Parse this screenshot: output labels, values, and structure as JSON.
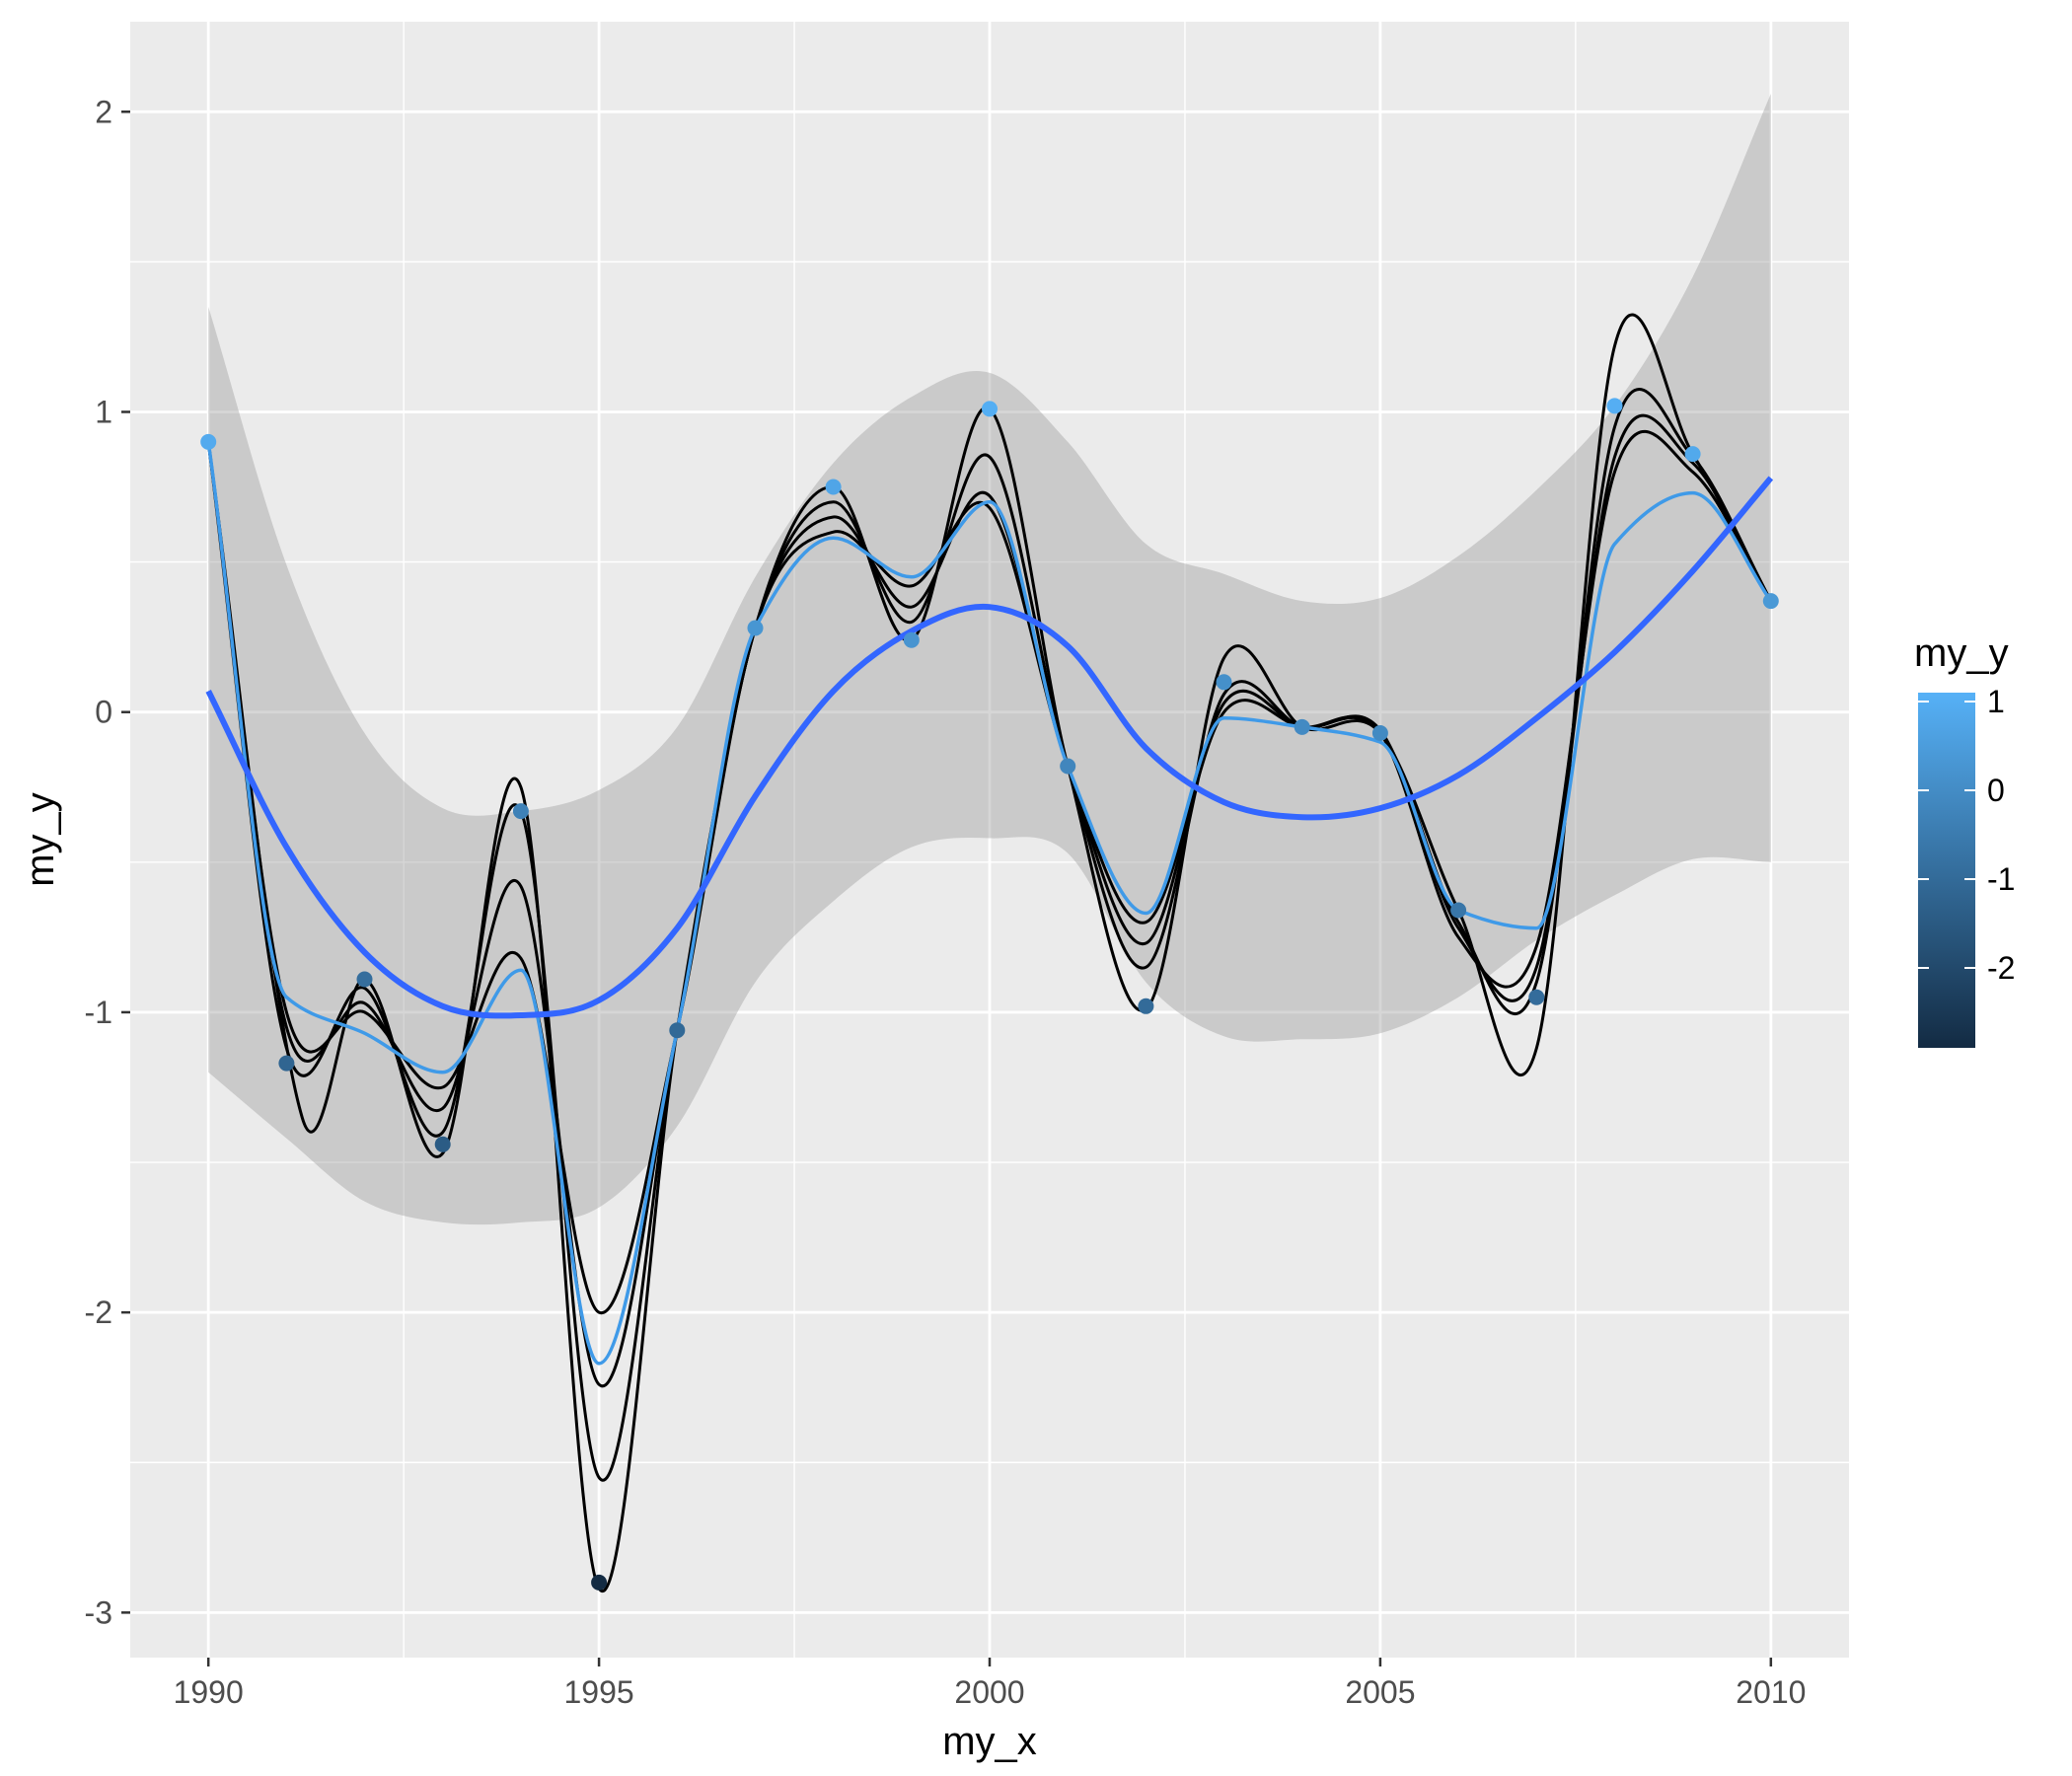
{
  "chart_data": {
    "type": "line",
    "xlabel": "my_x",
    "ylabel": "my_y",
    "xlim": [
      1989,
      2011
    ],
    "ylim": [
      -3.15,
      2.3
    ],
    "x_ticks": [
      1990,
      1995,
      2000,
      2005,
      2010
    ],
    "x_tick_labels": [
      "1990",
      "1995",
      "2000",
      "2005",
      "2010"
    ],
    "y_ticks": [
      -3,
      -2,
      -1,
      0,
      1,
      2
    ],
    "y_tick_labels": [
      "-3",
      "-2",
      "-1",
      "0",
      "1",
      "2"
    ],
    "grid": true,
    "legend": {
      "title": "my_y",
      "position": "right",
      "type": "colorbar",
      "range": [
        -2.9,
        1.1
      ],
      "breaks": [
        1,
        0,
        -1,
        -2
      ],
      "labels": [
        "1",
        "0",
        "-1",
        "-2"
      ],
      "low_color": "#132B43",
      "high_color": "#56B1F7"
    },
    "points": {
      "x": [
        1990,
        1991,
        1992,
        1993,
        1994,
        1995,
        1996,
        1997,
        1998,
        1999,
        2000,
        2001,
        2002,
        2003,
        2004,
        2005,
        2006,
        2007,
        2008,
        2009,
        2010
      ],
      "y": [
        0.9,
        -1.17,
        -0.89,
        -1.44,
        -0.33,
        -2.9,
        -1.06,
        0.28,
        0.75,
        0.24,
        1.01,
        -0.18,
        -0.98,
        0.1,
        -0.05,
        -0.07,
        -0.66,
        -0.95,
        1.02,
        0.86,
        0.37
      ]
    },
    "smooth": {
      "method": "loess",
      "color": "#3366FF",
      "x": [
        1990,
        1991,
        1992,
        1993,
        1994,
        1995,
        1996,
        1997,
        1998,
        1999,
        2000,
        2001,
        2002,
        2003,
        2004,
        2005,
        2006,
        2007,
        2008,
        2009,
        2010
      ],
      "y": [
        0.07,
        -0.45,
        -0.8,
        -0.98,
        -1.01,
        -0.96,
        -0.72,
        -0.28,
        0.07,
        0.27,
        0.35,
        0.22,
        -0.12,
        -0.3,
        -0.35,
        -0.32,
        -0.21,
        -0.02,
        0.2,
        0.47,
        0.78
      ],
      "ci_lower": [
        -1.2,
        -1.42,
        -1.63,
        -1.7,
        -1.7,
        -1.65,
        -1.38,
        -0.9,
        -0.63,
        -0.45,
        -0.42,
        -0.47,
        -0.9,
        -1.08,
        -1.09,
        -1.07,
        -0.95,
        -0.76,
        -0.61,
        -0.49,
        -0.5
      ],
      "ci_upper": [
        1.35,
        0.49,
        -0.07,
        -0.32,
        -0.33,
        -0.26,
        -0.05,
        0.45,
        0.83,
        1.05,
        1.13,
        0.9,
        0.56,
        0.46,
        0.37,
        0.38,
        0.52,
        0.74,
        1.02,
        1.45,
        2.06
      ]
    },
    "spline_fit": {
      "color": "#3F9AE8",
      "x": [
        1990,
        1991,
        1992,
        1993,
        1994,
        1995,
        1996,
        1997,
        1998,
        1999,
        2000,
        2001,
        2002,
        2003,
        2004,
        2005,
        2006,
        2007,
        2008,
        2009,
        2010
      ],
      "y": [
        0.9,
        -0.95,
        -1.07,
        -1.2,
        -0.86,
        -2.17,
        -1.06,
        0.28,
        0.58,
        0.45,
        0.7,
        -0.18,
        -0.67,
        -0.02,
        -0.05,
        -0.1,
        -0.66,
        -0.72,
        0.56,
        0.73,
        0.37
      ]
    },
    "interpolations": [
      {
        "x": [
          1990,
          1991.2,
          1992,
          1993,
          1994,
          1995,
          1996,
          1997,
          1998,
          1999,
          2000,
          2001,
          2002,
          2003,
          2004,
          2005,
          2006,
          2007,
          2008,
          2009,
          2010
        ],
        "y": [
          0.9,
          -1.35,
          -0.89,
          -1.47,
          -0.25,
          -2.92,
          -1.06,
          0.28,
          0.75,
          0.24,
          1.01,
          -0.18,
          -0.99,
          0.18,
          -0.05,
          -0.07,
          -0.66,
          -1.12,
          1.22,
          0.86,
          0.37
        ]
      },
      {
        "x": [
          1990,
          1991,
          1992,
          1993,
          1994,
          1995,
          1996,
          1997,
          1998,
          1999,
          2000,
          2001,
          2002,
          2003,
          2004,
          2005,
          2006,
          2007,
          2008,
          2009,
          2010
        ],
        "y": [
          0.9,
          -1.12,
          -0.92,
          -1.4,
          -0.33,
          -2.55,
          -1.06,
          0.28,
          0.7,
          0.3,
          0.85,
          -0.18,
          -0.85,
          0.06,
          -0.05,
          -0.06,
          -0.7,
          -0.9,
          0.95,
          0.85,
          0.37
        ]
      },
      {
        "x": [
          1990,
          1991,
          1992,
          1993,
          1994,
          1995,
          1996,
          1997,
          1998,
          1999,
          2000,
          2001,
          2002,
          2003,
          2004,
          2005,
          2006,
          2007,
          2008,
          2009,
          2010
        ],
        "y": [
          0.9,
          -1.05,
          -0.97,
          -1.32,
          -0.58,
          -2.24,
          -1.06,
          0.28,
          0.65,
          0.35,
          0.72,
          -0.18,
          -0.77,
          0.03,
          -0.05,
          -0.07,
          -0.72,
          -0.85,
          0.85,
          0.83,
          0.37
        ]
      },
      {
        "x": [
          1990,
          1991,
          1992,
          1993,
          1994,
          1995,
          1996,
          1997,
          1998,
          1999,
          2000,
          2001,
          2002,
          2003,
          2004,
          2005,
          2006,
          2007,
          2008,
          2009,
          2010
        ],
        "y": [
          0.9,
          -1.0,
          -1.0,
          -1.25,
          -0.82,
          -2.0,
          -1.06,
          0.28,
          0.6,
          0.42,
          0.68,
          -0.18,
          -0.7,
          0.0,
          -0.05,
          -0.07,
          -0.75,
          -0.78,
          0.8,
          0.8,
          0.37
        ]
      }
    ]
  }
}
